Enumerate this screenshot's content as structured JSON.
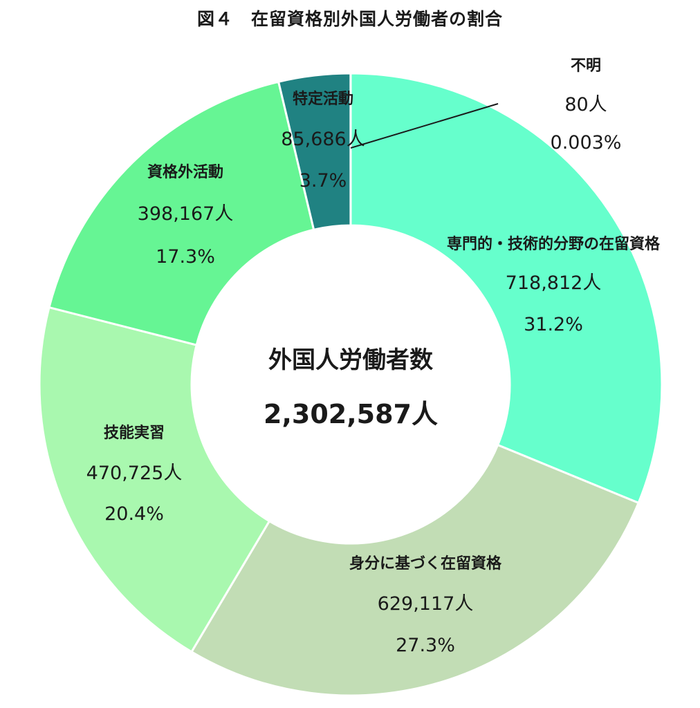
{
  "title": "図４　在留資格別外国人労働者の割合",
  "center": {
    "label": "外国人労働者数",
    "total": "2,302,587人"
  },
  "chart_data": {
    "type": "pie",
    "donut": true,
    "total": 2302587,
    "slices": [
      {
        "name": "専門的・技術的分野の在留資格",
        "value": 718812,
        "value_label": "718,812人",
        "percent": "31.2%",
        "color": "#66FFCC"
      },
      {
        "name": "身分に基づく在留資格",
        "value": 629117,
        "value_label": "629,117人",
        "percent": "27.3%",
        "color": "#C2DDB5"
      },
      {
        "name": "技能実習",
        "value": 470725,
        "value_label": "470,725人",
        "percent": "20.4%",
        "color": "#A9F8AF"
      },
      {
        "name": "資格外活動",
        "value": 398167,
        "value_label": "398,167人",
        "percent": "17.3%",
        "color": "#66F594"
      },
      {
        "name": "特定活動",
        "value": 85686,
        "value_label": "85,686人",
        "percent": "3.7%",
        "color": "#208282"
      },
      {
        "name": "不明",
        "value": 80,
        "value_label": "80人",
        "percent": "0.003%",
        "color": "#66FFCC"
      }
    ]
  }
}
